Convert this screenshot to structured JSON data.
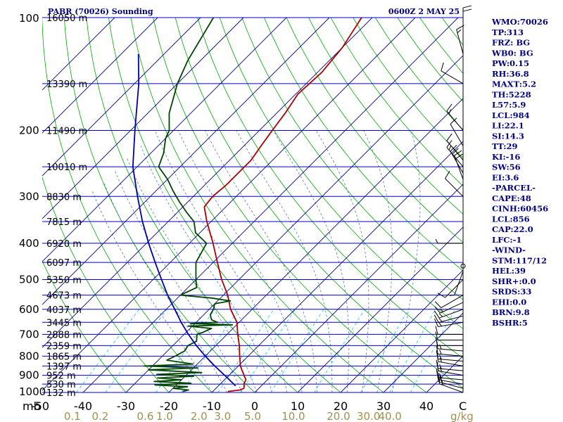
{
  "title_left": "PABR (70026) Sounding",
  "title_right": "0600Z  2 MAY 25",
  "side_panel": [
    "WMO:70026",
    "TP:313",
    "FRZ: BG",
    "WB0: BG",
    "PW:0.15",
    "RH:36.8",
    "MAXT:5.2",
    "TH:5228",
    "L57:5.9",
    "LCL:984",
    "LI:22.1",
    "SI:14.3",
    "TT:29",
    "KI:-16",
    "SW:56",
    "EI:3.6",
    "-PARCEL-",
    "CAPE:48",
    "CINH:60456",
    "LCL:856",
    "CAP:22.0",
    "LFC:-1",
    "-WIND-",
    "STM:117/12",
    "HEL:39",
    "SHR+:0.0",
    "SRDS:33",
    "EHI:0.0",
    "BRN:9.8",
    "BSHR:5"
  ],
  "colors": {
    "isobar": "#0000cc",
    "isotherm": "#000080",
    "dry_adiabat": "#00aa00",
    "moist_adiabat": "#5577aa",
    "mixing_ratio": "#00c8ff",
    "temperature": "#aa0000",
    "dewpoint": "#004400",
    "parcel": "#0000aa",
    "title": "#000080",
    "mixing_label": "#a09050"
  },
  "chart_data": {
    "type": "line",
    "xlabel": "",
    "ylabel": "",
    "y_unit_label": "mb",
    "x_unit_label": "C",
    "mixing_unit_label": "g/kg",
    "xlim": [
      -50,
      50
    ],
    "ylim": [
      1000,
      100
    ],
    "y_scale": "log",
    "grid": true,
    "pressure_ticks": [
      {
        "p": 100,
        "label": "100"
      },
      {
        "p": 200,
        "label": "200"
      },
      {
        "p": 300,
        "label": "300"
      },
      {
        "p": 400,
        "label": "400"
      },
      {
        "p": 500,
        "label": "500"
      },
      {
        "p": 600,
        "label": "600"
      },
      {
        "p": 700,
        "label": "700"
      },
      {
        "p": 800,
        "label": "800"
      },
      {
        "p": 900,
        "label": "900"
      },
      {
        "p": 1000,
        "label": "1000"
      }
    ],
    "temp_ticks": [
      {
        "t": -50,
        "label": "-50"
      },
      {
        "t": -40,
        "label": "-40"
      },
      {
        "t": -30,
        "label": "-30"
      },
      {
        "t": -20,
        "label": "-20"
      },
      {
        "t": -10,
        "label": "-10"
      },
      {
        "t": 0,
        "label": "0"
      },
      {
        "t": 10,
        "label": "10"
      },
      {
        "t": 20,
        "label": "20"
      },
      {
        "t": 30,
        "label": "30"
      },
      {
        "t": 40,
        "label": "40"
      }
    ],
    "mixing_ratio_ticks": [
      {
        "w": 0.1,
        "t": -42.5,
        "label": "0.1"
      },
      {
        "w": 0.2,
        "t": -36,
        "label": "0.2"
      },
      {
        "w": 0.6,
        "t": -25.5,
        "label": "0.6"
      },
      {
        "w": 1.0,
        "t": -21,
        "label": "1.0"
      },
      {
        "w": 2.0,
        "t": -13,
        "label": "2.0"
      },
      {
        "w": 3.0,
        "t": -7.5,
        "label": "3.0"
      },
      {
        "w": 5.0,
        "t": -0.5,
        "label": "5.0"
      },
      {
        "w": 10.0,
        "t": 9,
        "label": "10.0"
      },
      {
        "w": 20.0,
        "t": 19.5,
        "label": "20.0"
      },
      {
        "w": 30.0,
        "t": 26.5,
        "label": "30.0"
      },
      {
        "w": 40.0,
        "t": 31.5,
        "label": "40.0"
      }
    ],
    "height_labels": [
      {
        "p": 100,
        "label": "16050 m"
      },
      {
        "p": 150,
        "label": "13390 m"
      },
      {
        "p": 200,
        "label": "11490 m"
      },
      {
        "p": 250,
        "label": "10010 m"
      },
      {
        "p": 300,
        "label": "8830 m"
      },
      {
        "p": 350,
        "label": "7815 m"
      },
      {
        "p": 400,
        "label": "6920 m"
      },
      {
        "p": 450,
        "label": "6097 m"
      },
      {
        "p": 500,
        "label": "5350 m"
      },
      {
        "p": 550,
        "label": "4673 m"
      },
      {
        "p": 600,
        "label": "4037 m"
      },
      {
        "p": 650,
        "label": "3445 m"
      },
      {
        "p": 700,
        "label": "2888 m"
      },
      {
        "p": 750,
        "label": "2359 m"
      },
      {
        "p": 800,
        "label": "1865 m"
      },
      {
        "p": 850,
        "label": "1397 m"
      },
      {
        "p": 900,
        "label": "952 m"
      },
      {
        "p": 950,
        "label": "530 m"
      },
      {
        "p": 1000,
        "label": "132 m"
      }
    ],
    "series": [
      {
        "role": "temperature",
        "points": [
          [
            994,
            -6.5
          ],
          [
            985,
            -4
          ],
          [
            975,
            -3.5
          ],
          [
            960,
            -4
          ],
          [
            950,
            -4.5
          ],
          [
            925,
            -5
          ],
          [
            900,
            -6.5
          ],
          [
            875,
            -8
          ],
          [
            850,
            -9.5
          ],
          [
            800,
            -12
          ],
          [
            750,
            -14.5
          ],
          [
            700,
            -17.5
          ],
          [
            650,
            -20.5
          ],
          [
            600,
            -25
          ],
          [
            550,
            -29
          ],
          [
            500,
            -34
          ],
          [
            450,
            -39
          ],
          [
            400,
            -44.5
          ],
          [
            350,
            -51
          ],
          [
            320,
            -55
          ],
          [
            300,
            -55.5
          ],
          [
            280,
            -55
          ],
          [
            260,
            -55
          ],
          [
            250,
            -55
          ],
          [
            240,
            -55
          ],
          [
            220,
            -56
          ],
          [
            200,
            -57
          ],
          [
            180,
            -58
          ],
          [
            160,
            -59.5
          ],
          [
            140,
            -59
          ],
          [
            120,
            -60
          ],
          [
            100,
            -62.5
          ]
        ]
      },
      {
        "role": "dewpoint",
        "points": [
          [
            994,
            -17
          ],
          [
            985,
            -16
          ],
          [
            975,
            -20
          ],
          [
            965,
            -17
          ],
          [
            955,
            -25
          ],
          [
            945,
            -17
          ],
          [
            935,
            -26
          ],
          [
            925,
            -20
          ],
          [
            915,
            -26
          ],
          [
            905,
            -18
          ],
          [
            895,
            -27
          ],
          [
            885,
            -17
          ],
          [
            870,
            -30
          ],
          [
            860,
            -19
          ],
          [
            850,
            -32
          ],
          [
            840,
            -21
          ],
          [
            820,
            -28
          ],
          [
            800,
            -27
          ],
          [
            775,
            -26
          ],
          [
            750,
            -26.5
          ],
          [
            730,
            -25.5
          ],
          [
            700,
            -27
          ],
          [
            690,
            -26
          ],
          [
            675,
            -25
          ],
          [
            665,
            -31
          ],
          [
            660,
            -21
          ],
          [
            655,
            -31
          ],
          [
            650,
            -25
          ],
          [
            640,
            -27
          ],
          [
            620,
            -28.5
          ],
          [
            600,
            -29
          ],
          [
            580,
            -30
          ],
          [
            570,
            -27
          ],
          [
            560,
            -32
          ],
          [
            550,
            -40
          ],
          [
            525,
            -38
          ],
          [
            500,
            -40
          ],
          [
            450,
            -44
          ],
          [
            400,
            -46
          ],
          [
            375,
            -51
          ],
          [
            350,
            -54
          ],
          [
            330,
            -58
          ],
          [
            310,
            -62
          ],
          [
            290,
            -66
          ],
          [
            270,
            -70
          ],
          [
            250,
            -75
          ],
          [
            230,
            -77
          ],
          [
            210,
            -80
          ],
          [
            200,
            -81
          ],
          [
            180,
            -85
          ],
          [
            150,
            -90
          ],
          [
            130,
            -93
          ],
          [
            100,
            -97
          ]
        ]
      },
      {
        "role": "parcel",
        "points": [
          [
            960,
            -6
          ],
          [
            900,
            -11
          ],
          [
            850,
            -15.5
          ],
          [
            800,
            -20
          ],
          [
            750,
            -24.5
          ],
          [
            700,
            -29
          ],
          [
            650,
            -33.5
          ],
          [
            600,
            -38
          ],
          [
            550,
            -43
          ],
          [
            500,
            -48
          ],
          [
            450,
            -53.5
          ],
          [
            400,
            -59.5
          ],
          [
            350,
            -66
          ],
          [
            300,
            -73
          ],
          [
            250,
            -81
          ],
          [
            200,
            -89
          ],
          [
            150,
            -99
          ],
          [
            125,
            -106
          ]
        ]
      }
    ],
    "winds": [
      {
        "p": 1000,
        "dir": 290,
        "spd": 15
      },
      {
        "p": 975,
        "dir": 285,
        "spd": 15
      },
      {
        "p": 950,
        "dir": 280,
        "spd": 15
      },
      {
        "p": 925,
        "dir": 275,
        "spd": 15
      },
      {
        "p": 900,
        "dir": 280,
        "spd": 15
      },
      {
        "p": 875,
        "dir": 275,
        "spd": 15
      },
      {
        "p": 850,
        "dir": 280,
        "spd": 15
      },
      {
        "p": 825,
        "dir": 275,
        "spd": 15
      },
      {
        "p": 800,
        "dir": 275,
        "spd": 15
      },
      {
        "p": 775,
        "dir": 275,
        "spd": 15
      },
      {
        "p": 750,
        "dir": 270,
        "spd": 10
      },
      {
        "p": 725,
        "dir": 270,
        "spd": 10
      },
      {
        "p": 700,
        "dir": 270,
        "spd": 10
      },
      {
        "p": 650,
        "dir": 260,
        "spd": 15
      },
      {
        "p": 625,
        "dir": 255,
        "spd": 15
      },
      {
        "p": 600,
        "dir": 250,
        "spd": 15
      },
      {
        "p": 575,
        "dir": 245,
        "spd": 15
      },
      {
        "p": 550,
        "dir": 240,
        "spd": 10
      },
      {
        "p": 500,
        "dir": 225,
        "spd": 10
      },
      {
        "p": 475,
        "dir": 200,
        "spd": 5
      },
      {
        "p": 460,
        "dir": 0,
        "spd": 0
      },
      {
        "p": 400,
        "dir": 270,
        "spd": 5
      },
      {
        "p": 300,
        "dir": 315,
        "spd": 10
      },
      {
        "p": 270,
        "dir": 340,
        "spd": 20
      },
      {
        "p": 260,
        "dir": 330,
        "spd": 20
      },
      {
        "p": 250,
        "dir": 320,
        "spd": 15
      },
      {
        "p": 240,
        "dir": 320,
        "spd": 10
      },
      {
        "p": 220,
        "dir": 330,
        "spd": 10
      },
      {
        "p": 200,
        "dir": 320,
        "spd": 15
      },
      {
        "p": 150,
        "dir": 300,
        "spd": 10
      },
      {
        "p": 125,
        "dir": 345,
        "spd": 15
      },
      {
        "p": 110,
        "dir": 0,
        "spd": 20
      }
    ]
  }
}
